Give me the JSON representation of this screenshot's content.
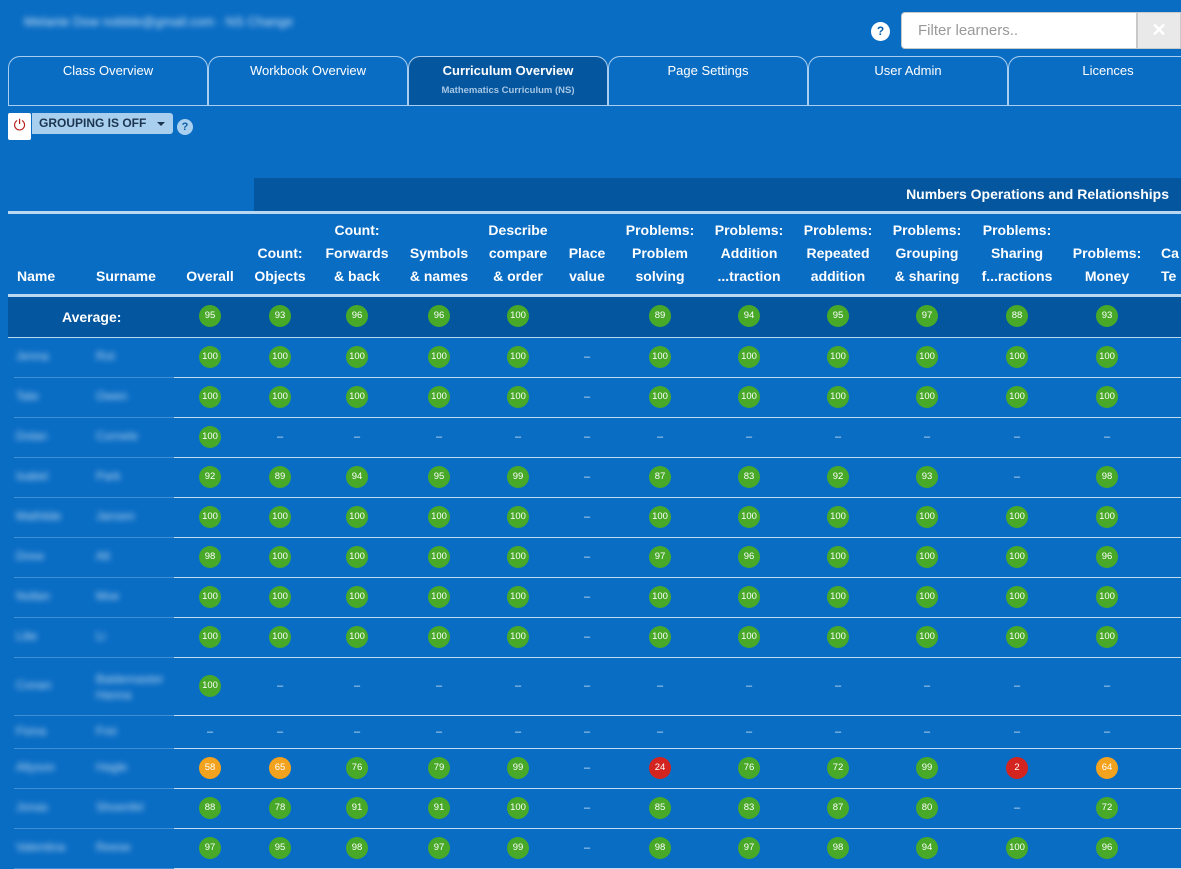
{
  "header": {
    "user_line": "Melanie Dow  nobble@gmail.com  ·  NS  Change",
    "help_label": "?",
    "filter_placeholder": "Filter learners..",
    "clear_label": "✕"
  },
  "tabs": [
    {
      "label": "Class Overview",
      "sub": "",
      "active": false
    },
    {
      "label": "Workbook Overview",
      "sub": "",
      "active": false
    },
    {
      "label": "Curriculum Overview",
      "sub": "Mathematics Curriculum (NS)",
      "active": true
    },
    {
      "label": "Page Settings",
      "sub": "",
      "active": false
    },
    {
      "label": "User Admin",
      "sub": "",
      "active": false
    },
    {
      "label": "Licences",
      "sub": "",
      "active": false
    }
  ],
  "grouping": {
    "power_icon": "⏻",
    "label": "GROUPING IS OFF",
    "help": "?"
  },
  "section_title": "Numbers Operations and Relationships",
  "columns": [
    {
      "key": "name",
      "label": [
        "Name"
      ]
    },
    {
      "key": "surname",
      "label": [
        "Surname"
      ]
    },
    {
      "key": "overall",
      "label": [
        "Overall"
      ]
    },
    {
      "key": "count_objects",
      "label": [
        "Count:",
        "Objects"
      ]
    },
    {
      "key": "count_fb",
      "label": [
        "Count:",
        "Forwards",
        "& back"
      ]
    },
    {
      "key": "symbols",
      "label": [
        "Symbols",
        "& names"
      ]
    },
    {
      "key": "describe",
      "label": [
        "Describe",
        "compare",
        "& order"
      ]
    },
    {
      "key": "place",
      "label": [
        "Place",
        "value"
      ]
    },
    {
      "key": "prob_ps",
      "label": [
        "Problems:",
        "Problem",
        "solving"
      ]
    },
    {
      "key": "prob_as",
      "label": [
        "Problems:",
        "Addition",
        "...traction"
      ]
    },
    {
      "key": "prob_ra",
      "label": [
        "Problems:",
        "Repeated",
        "addition"
      ]
    },
    {
      "key": "prob_gs",
      "label": [
        "Problems:",
        "Grouping",
        "& sharing"
      ]
    },
    {
      "key": "prob_sf",
      "label": [
        "Problems:",
        "Sharing",
        "f...ractions"
      ]
    },
    {
      "key": "prob_money",
      "label": [
        "Problems:",
        "Money"
      ]
    },
    {
      "key": "calc",
      "label": [
        "Ca",
        "Te"
      ]
    }
  ],
  "average": {
    "label": "Average:",
    "values": [
      95,
      93,
      96,
      96,
      100,
      null,
      89,
      94,
      95,
      97,
      88,
      93
    ]
  },
  "rows": [
    {
      "name": "Jenna",
      "surname": "Rot",
      "values": [
        100,
        100,
        100,
        100,
        100,
        null,
        100,
        100,
        100,
        100,
        100,
        100
      ]
    },
    {
      "name": "Tate",
      "surname": "Owen",
      "values": [
        100,
        100,
        100,
        100,
        100,
        null,
        100,
        100,
        100,
        100,
        100,
        100
      ]
    },
    {
      "name": "Dolan",
      "surname": "Cornele",
      "values": [
        100,
        null,
        null,
        null,
        null,
        null,
        null,
        null,
        null,
        null,
        null,
        null
      ]
    },
    {
      "name": "Isabel",
      "surname": "Park",
      "values": [
        92,
        89,
        94,
        95,
        99,
        null,
        87,
        83,
        92,
        93,
        null,
        98
      ]
    },
    {
      "name": "Mathilde",
      "surname": "Jansen",
      "values": [
        100,
        100,
        100,
        100,
        100,
        null,
        100,
        100,
        100,
        100,
        100,
        100
      ]
    },
    {
      "name": "Drew",
      "surname": "Alt",
      "values": [
        98,
        100,
        100,
        100,
        100,
        null,
        97,
        96,
        100,
        100,
        100,
        96
      ]
    },
    {
      "name": "Nollan",
      "surname": "Moe",
      "values": [
        100,
        100,
        100,
        100,
        100,
        null,
        100,
        100,
        100,
        100,
        100,
        100
      ]
    },
    {
      "name": "Lilie",
      "surname": "Li",
      "values": [
        100,
        100,
        100,
        100,
        100,
        null,
        100,
        100,
        100,
        100,
        100,
        100
      ]
    },
    {
      "name": "Conan",
      "surname": "Baldemaster Hanna",
      "values": [
        100,
        null,
        null,
        null,
        null,
        null,
        null,
        null,
        null,
        null,
        null,
        null
      ]
    },
    {
      "name": "Fiona",
      "surname": "Frei",
      "values": [
        null,
        null,
        null,
        null,
        null,
        null,
        null,
        null,
        null,
        null,
        null,
        null
      ]
    },
    {
      "name": "Allyson",
      "surname": "Hagle",
      "values": [
        58,
        65,
        76,
        79,
        99,
        null,
        24,
        76,
        72,
        99,
        2,
        64
      ]
    },
    {
      "name": "Jonas",
      "surname": "Shoenfel",
      "values": [
        88,
        78,
        91,
        91,
        100,
        null,
        85,
        83,
        87,
        80,
        null,
        72
      ]
    },
    {
      "name": "Valentina",
      "surname": "Reese",
      "values": [
        97,
        95,
        98,
        97,
        99,
        null,
        98,
        97,
        98,
        94,
        100,
        96
      ]
    }
  ],
  "empty_marker": "–",
  "colors": {
    "background": "#0a6dc4",
    "band": "#04569e",
    "good": "#48a828",
    "warning": "#f2a21c",
    "poor": "#d3241f"
  }
}
